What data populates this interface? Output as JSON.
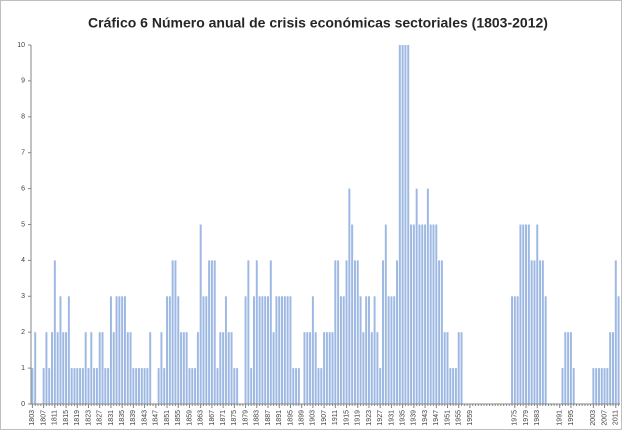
{
  "chart_data": {
    "type": "bar",
    "title": "Cráfico 6 Número anual de crisis económicas sectoriales (1803-2012)",
    "color": "#9db9e3",
    "x": [
      1803,
      1804,
      1805,
      1806,
      1807,
      1808,
      1809,
      1810,
      1811,
      1812,
      1813,
      1814,
      1815,
      1816,
      1817,
      1818,
      1819,
      1820,
      1821,
      1822,
      1823,
      1824,
      1825,
      1826,
      1827,
      1828,
      1829,
      1830,
      1831,
      1832,
      1833,
      1834,
      1835,
      1836,
      1837,
      1838,
      1839,
      1840,
      1841,
      1842,
      1843,
      1844,
      1845,
      1846,
      1847,
      1848,
      1849,
      1850,
      1851,
      1852,
      1853,
      1854,
      1855,
      1856,
      1857,
      1858,
      1859,
      1860,
      1861,
      1862,
      1863,
      1864,
      1865,
      1866,
      1867,
      1868,
      1869,
      1870,
      1871,
      1872,
      1873,
      1874,
      1875,
      1876,
      1877,
      1878,
      1879,
      1880,
      1881,
      1882,
      1883,
      1884,
      1885,
      1886,
      1887,
      1888,
      1889,
      1890,
      1891,
      1892,
      1893,
      1894,
      1895,
      1896,
      1897,
      1898,
      1899,
      1900,
      1901,
      1902,
      1903,
      1904,
      1905,
      1906,
      1907,
      1908,
      1909,
      1910,
      1911,
      1912,
      1913,
      1914,
      1915,
      1916,
      1917,
      1918,
      1919,
      1920,
      1921,
      1922,
      1923,
      1924,
      1925,
      1926,
      1927,
      1928,
      1929,
      1930,
      1931,
      1932,
      1933,
      1934,
      1935,
      1936,
      1937,
      1938,
      1939,
      1940,
      1941,
      1942,
      1943,
      1944,
      1945,
      1946,
      1947,
      1948,
      1949,
      1950,
      1951,
      1952,
      1953,
      1954,
      1955,
      1956,
      1957,
      1958,
      1959,
      1960,
      1961,
      1962,
      1963,
      1964,
      1965,
      1966,
      1967,
      1968,
      1969,
      1970,
      1971,
      1972,
      1973,
      1974,
      1975,
      1976,
      1977,
      1978,
      1979,
      1980,
      1981,
      1982,
      1983,
      1984,
      1985,
      1986,
      1987,
      1988,
      1989,
      1990,
      1991,
      1992,
      1993,
      1994,
      1995,
      1996,
      1997,
      1998,
      1999,
      2000,
      2001,
      2002,
      2003,
      2004,
      2005,
      2006,
      2007,
      2008,
      2009,
      2010,
      2011,
      2012
    ],
    "values": [
      1,
      2,
      0,
      0,
      1,
      2,
      1,
      2,
      4,
      2,
      3,
      2,
      2,
      3,
      1,
      1,
      1,
      1,
      1,
      2,
      1,
      2,
      1,
      1,
      2,
      2,
      1,
      1,
      3,
      2,
      3,
      3,
      3,
      3,
      2,
      2,
      1,
      1,
      1,
      1,
      1,
      1,
      2,
      0,
      0,
      1,
      2,
      1,
      3,
      3,
      4,
      4,
      3,
      2,
      2,
      2,
      1,
      1,
      1,
      2,
      5,
      3,
      3,
      4,
      4,
      4,
      1,
      2,
      2,
      3,
      2,
      2,
      1,
      1,
      0,
      0,
      3,
      4,
      1,
      3,
      4,
      3,
      3,
      3,
      3,
      4,
      2,
      3,
      3,
      3,
      3,
      3,
      3,
      1,
      1,
      1,
      0,
      2,
      2,
      2,
      3,
      2,
      1,
      1,
      2,
      2,
      2,
      2,
      4,
      4,
      3,
      3,
      4,
      6,
      5,
      4,
      4,
      3,
      2,
      3,
      3,
      2,
      3,
      2,
      1,
      4,
      5,
      3,
      3,
      3,
      4,
      10,
      10,
      10,
      10,
      5,
      5,
      6,
      5,
      5,
      5,
      6,
      5,
      5,
      5,
      4,
      4,
      2,
      2,
      1,
      1,
      1,
      2,
      2,
      0,
      0,
      0,
      0,
      0,
      0,
      0,
      0,
      0,
      0,
      0,
      0,
      0,
      0,
      0,
      0,
      0,
      3,
      3,
      3,
      5,
      5,
      5,
      5,
      4,
      4,
      5,
      4,
      4,
      3,
      0,
      0,
      0,
      0,
      0,
      1,
      2,
      2,
      2,
      1,
      0,
      0,
      0,
      0,
      0,
      0,
      1,
      1,
      1,
      1,
      1,
      1,
      2,
      2,
      4,
      3
    ],
    "xlim": [
      1802.5,
      2012.5
    ],
    "xticks": [
      1803,
      1807,
      1811,
      1815,
      1819,
      1823,
      1827,
      1831,
      1835,
      1839,
      1843,
      1847,
      1851,
      1855,
      1859,
      1863,
      1867,
      1871,
      1875,
      1879,
      1883,
      1887,
      1891,
      1895,
      1899,
      1903,
      1907,
      1911,
      1915,
      1919,
      1923,
      1927,
      1931,
      1935,
      1939,
      1943,
      1947,
      1951,
      1955,
      1959,
      1975,
      1979,
      1983,
      1991,
      1995,
      2003,
      2007,
      2011
    ],
    "ylim": [
      0,
      10
    ],
    "yticks": [
      0,
      1,
      2,
      3,
      4,
      5,
      6,
      7,
      8,
      9,
      10
    ]
  }
}
